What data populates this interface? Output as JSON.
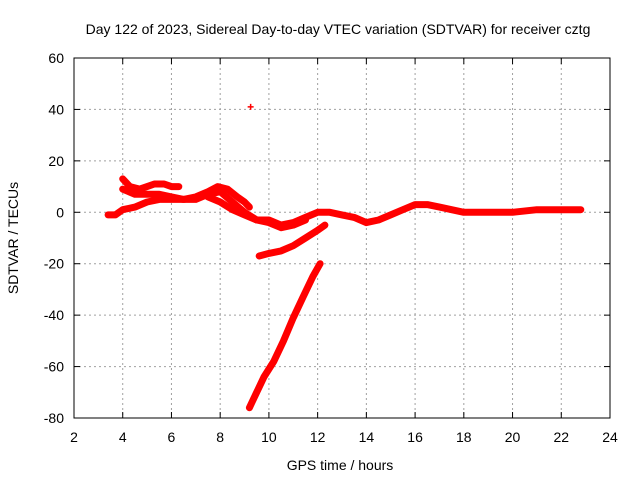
{
  "chart_data": {
    "type": "scatter",
    "title": "Day 122 of 2023, Sidereal Day-to-day VTEC variation (SDTVAR) for receiver cztg",
    "xlabel": "GPS time / hours",
    "ylabel": "SDTVAR / TECUs",
    "xlim": [
      2,
      24
    ],
    "ylim": [
      -80,
      60
    ],
    "xticks": [
      2,
      4,
      6,
      8,
      10,
      12,
      14,
      16,
      18,
      20,
      22,
      24
    ],
    "yticks": [
      -80,
      -60,
      -40,
      -20,
      0,
      20,
      40,
      60
    ],
    "xtick_labels": [
      "2",
      "4",
      "6",
      "8",
      "10",
      "12",
      "14",
      "16",
      "18",
      "20",
      "22",
      "24"
    ],
    "ytick_labels": [
      "-80",
      "-60",
      "-40",
      "-20",
      "0",
      "20",
      "40",
      "60"
    ],
    "grid": true,
    "series_color": "#ff0000",
    "series": [
      {
        "name": "main-trace",
        "points": [
          [
            3.4,
            -1
          ],
          [
            3.7,
            -1
          ],
          [
            4.0,
            1
          ],
          [
            4.5,
            2
          ],
          [
            5.0,
            4
          ],
          [
            5.5,
            5
          ],
          [
            6.0,
            5
          ],
          [
            6.5,
            5
          ],
          [
            7.0,
            5
          ],
          [
            7.5,
            7
          ],
          [
            8.0,
            8
          ],
          [
            8.5,
            4
          ],
          [
            9.0,
            0
          ],
          [
            9.5,
            -3
          ],
          [
            10.0,
            -3
          ],
          [
            10.5,
            -5
          ],
          [
            11.0,
            -4
          ],
          [
            11.5,
            -2
          ],
          [
            12.0,
            0
          ],
          [
            12.5,
            0
          ],
          [
            13.0,
            -1
          ],
          [
            13.5,
            -2
          ],
          [
            14.0,
            -4
          ],
          [
            14.5,
            -3
          ],
          [
            15.0,
            -1
          ],
          [
            15.5,
            1
          ],
          [
            16.0,
            3
          ],
          [
            16.5,
            3
          ],
          [
            17.0,
            2
          ],
          [
            17.5,
            1
          ],
          [
            18.0,
            0
          ],
          [
            19.0,
            0
          ],
          [
            20.0,
            0
          ],
          [
            21.0,
            1
          ],
          [
            22.0,
            1
          ],
          [
            22.8,
            1
          ]
        ]
      },
      {
        "name": "upper-arc",
        "points": [
          [
            4.0,
            13
          ],
          [
            4.3,
            10
          ],
          [
            4.7,
            9
          ],
          [
            5.0,
            10
          ],
          [
            5.3,
            11
          ],
          [
            5.7,
            11
          ],
          [
            6.0,
            10
          ],
          [
            6.3,
            10
          ]
        ]
      },
      {
        "name": "mid-arc",
        "points": [
          [
            4.0,
            9
          ],
          [
            4.5,
            7
          ],
          [
            5.0,
            7
          ],
          [
            5.5,
            7
          ],
          [
            6.0,
            6
          ],
          [
            6.5,
            5
          ],
          [
            7.0,
            6
          ],
          [
            7.5,
            8
          ],
          [
            7.9,
            10
          ],
          [
            8.3,
            9
          ],
          [
            8.7,
            6
          ],
          [
            9.0,
            4
          ],
          [
            9.2,
            2
          ]
        ]
      },
      {
        "name": "lower-arc",
        "points": [
          [
            7.5,
            6
          ],
          [
            8.0,
            4
          ],
          [
            8.5,
            1
          ],
          [
            9.0,
            -1
          ],
          [
            9.5,
            -3
          ],
          [
            10.0,
            -4
          ],
          [
            10.5,
            -6
          ],
          [
            11.0,
            -5
          ],
          [
            11.5,
            -3
          ]
        ]
      },
      {
        "name": "middle-drop",
        "points": [
          [
            9.6,
            -17
          ],
          [
            10.0,
            -16
          ],
          [
            10.5,
            -15
          ],
          [
            11.0,
            -13
          ],
          [
            11.5,
            -10
          ],
          [
            12.0,
            -7
          ],
          [
            12.3,
            -5
          ]
        ]
      },
      {
        "name": "steep-rise",
        "points": [
          [
            9.2,
            -76
          ],
          [
            9.5,
            -70
          ],
          [
            9.8,
            -64
          ],
          [
            10.2,
            -58
          ],
          [
            10.6,
            -50
          ],
          [
            11.0,
            -41
          ],
          [
            11.4,
            -33
          ],
          [
            11.8,
            -25
          ],
          [
            12.1,
            -20
          ]
        ]
      },
      {
        "name": "outlier",
        "points": [
          [
            9.25,
            41
          ]
        ]
      }
    ]
  }
}
